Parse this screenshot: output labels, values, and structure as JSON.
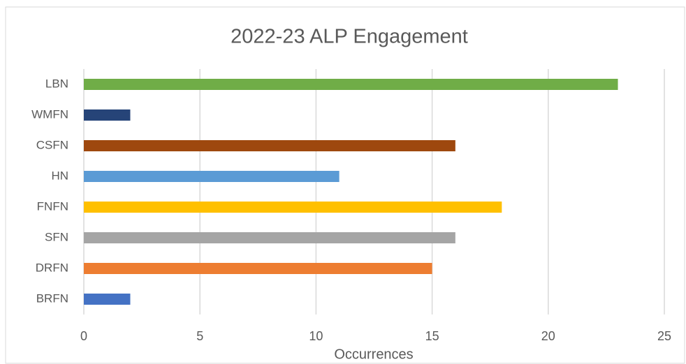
{
  "chart_data": {
    "type": "hbar",
    "title": "2022-23 ALP Engagement",
    "x_label": "Occurrences",
    "categories": [
      "LBN",
      "WMFN",
      "CSFN",
      "HN",
      "FNFN",
      "SFN",
      "DRFN",
      "BRFN"
    ],
    "values": [
      23,
      2,
      16,
      11,
      18,
      16,
      15,
      2
    ],
    "colors": [
      "#70ad47",
      "#264478",
      "#9e480e",
      "#5b9bd5",
      "#ffc000",
      "#a5a5a5",
      "#ed7d31",
      "#4472c4"
    ],
    "xlim": [
      0,
      25
    ],
    "xticks": [
      0,
      5,
      10,
      15,
      20,
      25
    ],
    "grid": true
  }
}
